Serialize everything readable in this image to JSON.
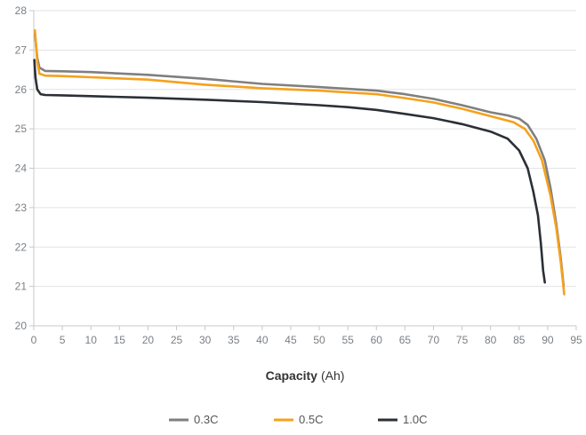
{
  "chart_data": {
    "type": "line",
    "title": "",
    "xlabel_bold": "Capacity",
    "xlabel_rest": "(Ah)",
    "ylabel": "",
    "xlim": [
      0,
      95
    ],
    "ylim": [
      20,
      28
    ],
    "xticks": [
      0,
      5,
      10,
      15,
      20,
      25,
      30,
      35,
      40,
      45,
      50,
      55,
      60,
      65,
      70,
      75,
      80,
      85,
      90,
      95
    ],
    "yticks": [
      20,
      21,
      22,
      23,
      24,
      25,
      26,
      27,
      28
    ],
    "grid": "horizontal",
    "legend_position": "bottom-center",
    "series": [
      {
        "name": "0.3C",
        "color": "#7f7f7f",
        "points": [
          [
            0.2,
            27.4
          ],
          [
            0.6,
            26.8
          ],
          [
            1,
            26.55
          ],
          [
            2,
            26.47
          ],
          [
            5,
            26.46
          ],
          [
            10,
            26.44
          ],
          [
            20,
            26.37
          ],
          [
            30,
            26.27
          ],
          [
            40,
            26.14
          ],
          [
            50,
            26.06
          ],
          [
            60,
            25.97
          ],
          [
            65,
            25.88
          ],
          [
            70,
            25.76
          ],
          [
            75,
            25.6
          ],
          [
            80,
            25.42
          ],
          [
            83,
            25.34
          ],
          [
            85,
            25.26
          ],
          [
            86.5,
            25.1
          ],
          [
            88,
            24.75
          ],
          [
            89.5,
            24.2
          ],
          [
            90.5,
            23.5
          ],
          [
            91.5,
            22.6
          ],
          [
            92.3,
            21.7
          ],
          [
            92.8,
            21.0
          ]
        ]
      },
      {
        "name": "0.5C",
        "color": "#f5a11c",
        "points": [
          [
            0.2,
            27.5
          ],
          [
            0.6,
            26.7
          ],
          [
            1,
            26.4
          ],
          [
            2,
            26.35
          ],
          [
            5,
            26.34
          ],
          [
            10,
            26.31
          ],
          [
            20,
            26.25
          ],
          [
            30,
            26.12
          ],
          [
            40,
            26.03
          ],
          [
            50,
            25.97
          ],
          [
            60,
            25.88
          ],
          [
            65,
            25.78
          ],
          [
            70,
            25.67
          ],
          [
            75,
            25.51
          ],
          [
            80,
            25.32
          ],
          [
            84,
            25.17
          ],
          [
            86,
            25.0
          ],
          [
            87.5,
            24.7
          ],
          [
            89,
            24.2
          ],
          [
            90.5,
            23.3
          ],
          [
            91.5,
            22.5
          ],
          [
            92.3,
            21.6
          ],
          [
            92.9,
            20.8
          ]
        ]
      },
      {
        "name": "1.0C",
        "color": "#2b2f36",
        "points": [
          [
            0.1,
            26.75
          ],
          [
            0.3,
            26.3
          ],
          [
            0.6,
            26.0
          ],
          [
            1.2,
            25.88
          ],
          [
            2,
            25.86
          ],
          [
            5,
            25.85
          ],
          [
            10,
            25.83
          ],
          [
            20,
            25.79
          ],
          [
            30,
            25.74
          ],
          [
            40,
            25.68
          ],
          [
            50,
            25.6
          ],
          [
            55,
            25.55
          ],
          [
            60,
            25.48
          ],
          [
            65,
            25.38
          ],
          [
            70,
            25.27
          ],
          [
            75,
            25.12
          ],
          [
            80,
            24.93
          ],
          [
            83,
            24.75
          ],
          [
            85,
            24.45
          ],
          [
            86.5,
            24.0
          ],
          [
            87.5,
            23.4
          ],
          [
            88.3,
            22.8
          ],
          [
            88.8,
            22.1
          ],
          [
            89.2,
            21.4
          ],
          [
            89.5,
            21.1
          ]
        ]
      }
    ]
  }
}
